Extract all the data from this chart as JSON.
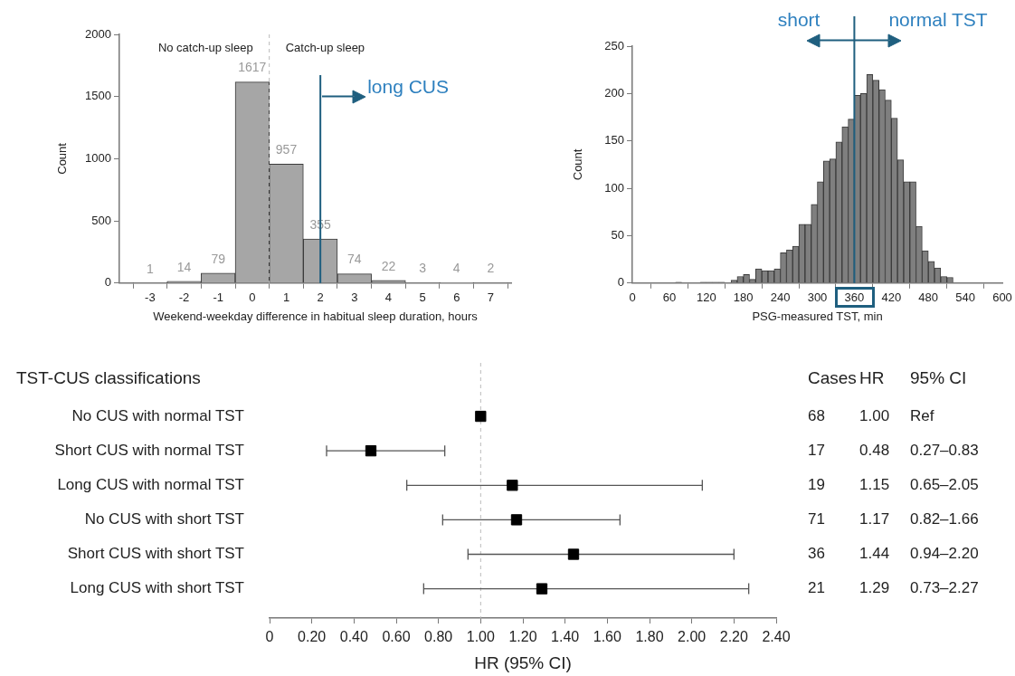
{
  "chart_data": [
    {
      "type": "histogram",
      "xlabel": "Weekend-weekday difference in habitual sleep duration, hours",
      "ylabel": "Count",
      "bins": [
        -3.5,
        -2.5,
        -1.5,
        -0.5,
        0.5,
        1.5,
        2.5,
        3.5,
        4.5,
        5.5,
        6.5,
        7.5
      ],
      "values": [
        1,
        14,
        79,
        1617,
        957,
        355,
        74,
        22,
        3,
        4,
        2
      ],
      "color": "#a6a6a6",
      "data_labels": true,
      "xlim": [
        -3.9,
        7.6
      ],
      "xticks": [
        -3,
        -2,
        -1,
        0,
        1,
        2,
        3,
        4,
        5,
        6,
        7
      ],
      "ylim": [
        0,
        2000
      ],
      "yticks": [
        0,
        500,
        1000,
        1500,
        2000
      ],
      "ref_lines": [
        {
          "axis": "x",
          "value": 0.5,
          "color": "#bbbbbb",
          "line_style": "dashed"
        },
        {
          "axis": "x",
          "value": 2,
          "label": "long CUS",
          "color": "#1f5f7f"
        }
      ],
      "annotations": [
        "No catch-up sleep",
        "Catch-up sleep"
      ]
    },
    {
      "type": "histogram",
      "xlabel": "PSG-measured TST, min",
      "ylabel": "Count",
      "bins": [
        0,
        10,
        20,
        30,
        40,
        50,
        60,
        70,
        80,
        90,
        100,
        110,
        120,
        130,
        140,
        150,
        160,
        170,
        180,
        190,
        200,
        210,
        220,
        230,
        240,
        250,
        260,
        270,
        280,
        290,
        300,
        310,
        320,
        330,
        340,
        350,
        360,
        370,
        380,
        390,
        400,
        410,
        420,
        430,
        440,
        450,
        460,
        470,
        480,
        490,
        500,
        510,
        520,
        530,
        540,
        550,
        560,
        570,
        580,
        590,
        600
      ],
      "values": [
        0,
        0,
        0,
        0,
        0,
        0,
        0,
        1,
        0,
        0,
        0,
        1,
        1,
        1,
        1,
        0,
        3,
        7,
        9,
        4,
        15,
        13,
        13,
        15,
        32,
        35,
        39,
        62,
        62,
        83,
        107,
        129,
        131,
        149,
        165,
        173,
        198,
        200,
        220,
        214,
        204,
        193,
        174,
        130,
        107,
        107,
        60,
        34,
        23,
        16,
        7,
        6,
        0,
        0,
        0,
        0,
        0,
        0,
        0,
        0
      ],
      "color": "#7f7f7f",
      "xlim": [
        0,
        600
      ],
      "xticks": [
        0,
        60,
        120,
        180,
        240,
        300,
        360,
        420,
        480,
        540,
        600
      ],
      "ylim": [
        0,
        250
      ],
      "yticks": [
        0,
        50,
        100,
        150,
        200,
        250
      ],
      "ref_lines": [
        {
          "axis": "x",
          "value": 360,
          "color": "#1f5f7f"
        }
      ],
      "annotations": [
        "short",
        "normal TST"
      ]
    },
    {
      "type": "scatter",
      "orientation": "horizontal",
      "xlabel": "HR (95% CI)",
      "ylabel": "TST-CUS classifications",
      "categories": [
        "No CUS with normal TST",
        "Short CUS with normal TST",
        "Long CUS with normal TST",
        "No CUS with short TST",
        "Short CUS with short TST",
        "Long CUS with short TST"
      ],
      "values": [
        1.0,
        0.48,
        1.15,
        1.17,
        1.44,
        1.29
      ],
      "errors": [
        null,
        [
          0.27,
          0.83
        ],
        [
          0.65,
          2.05
        ],
        [
          0.82,
          1.66
        ],
        [
          0.94,
          2.2
        ],
        [
          0.73,
          2.27
        ]
      ],
      "value_labels": [
        "1.00",
        "0.48",
        "1.15",
        "1.17",
        "1.44",
        "1.29"
      ],
      "color": "#000000",
      "marker": "square",
      "xlim": [
        0,
        2.4
      ],
      "xticks": [
        0,
        {
          "value": 0.2,
          "label": "0.20"
        },
        {
          "value": 0.4,
          "label": "0.40"
        },
        {
          "value": 0.6,
          "label": "0.60"
        },
        {
          "value": 0.8,
          "label": "0.80"
        },
        {
          "value": 1,
          "label": "1.00"
        },
        {
          "value": 1.2,
          "label": "1.20"
        },
        {
          "value": 1.4,
          "label": "1.40"
        },
        {
          "value": 1.6,
          "label": "1.60"
        },
        {
          "value": 1.8,
          "label": "1.80"
        },
        {
          "value": 2,
          "label": "2.00"
        },
        {
          "value": 2.2,
          "label": "2.20"
        },
        {
          "value": 2.4,
          "label": "2.40"
        }
      ],
      "ref_lines": [
        {
          "axis": "x",
          "value": 1,
          "color": "#bbbbbb",
          "line_style": "dashed"
        }
      ],
      "annotations": [
        "Cases",
        "HR",
        "95% CI",
        "68",
        "Ref",
        "17",
        "0.27–0.83",
        "19",
        "0.65–2.05",
        "71",
        "0.82–1.66",
        "36",
        "0.94–2.20",
        "21",
        "0.73–2.27"
      ]
    }
  ]
}
